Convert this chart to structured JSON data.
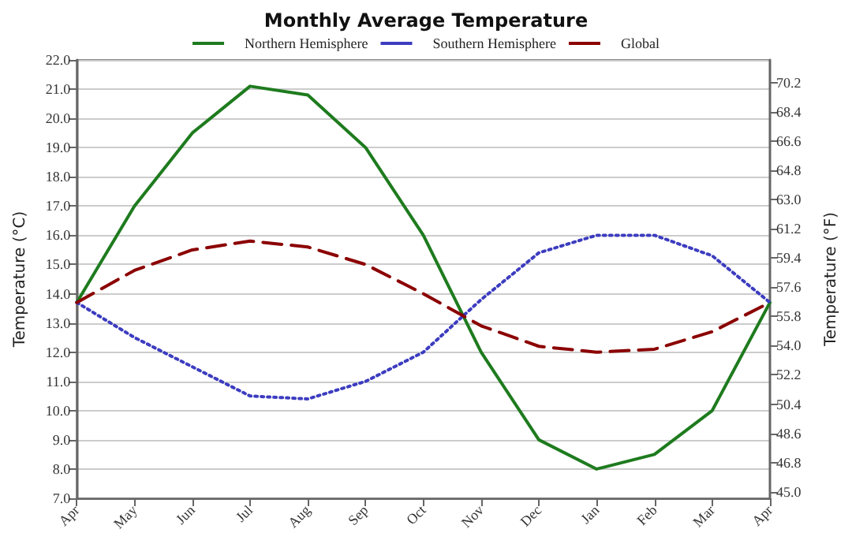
{
  "chart_data": {
    "type": "line",
    "title": "Monthly Average Temperature",
    "categories": [
      "Apr",
      "May",
      "Jun",
      "Jul",
      "Aug",
      "Sep",
      "Oct",
      "Nov",
      "Dec",
      "Jan",
      "Feb",
      "Mar",
      "Apr"
    ],
    "series": [
      {
        "name": "Northern Hemisphere",
        "color": "#1e7b1e",
        "line_style": "solid",
        "values": [
          13.7,
          17.0,
          19.5,
          21.1,
          20.8,
          19.0,
          16.0,
          12.0,
          9.0,
          8.0,
          8.5,
          10.0,
          13.7
        ]
      },
      {
        "name": "Southern Hemisphere",
        "color": "#3c3cc0",
        "line_style": "dotted",
        "values": [
          13.7,
          12.5,
          11.5,
          10.5,
          10.4,
          11.0,
          12.0,
          13.8,
          15.4,
          16.0,
          16.0,
          15.3,
          13.7
        ]
      },
      {
        "name": "Global",
        "color": "#8b0000",
        "line_style": "dashed",
        "values": [
          13.7,
          14.8,
          15.5,
          15.8,
          15.6,
          15.0,
          14.0,
          12.9,
          12.2,
          12.0,
          12.1,
          12.7,
          13.7
        ]
      }
    ],
    "ylabel": "Temperature (°C)",
    "y2label": "Temperature (°F)",
    "ylim": [
      7.0,
      22.0
    ],
    "yticks": [
      {
        "value": 7,
        "label": "7.0"
      },
      {
        "value": 8,
        "label": "8.0"
      },
      {
        "value": 9,
        "label": "9.0"
      },
      {
        "value": 10,
        "label": "10.0"
      },
      {
        "value": 11,
        "label": "11.0"
      },
      {
        "value": 12,
        "label": "12.0"
      },
      {
        "value": 13,
        "label": "13.0"
      },
      {
        "value": 14,
        "label": "14.0"
      },
      {
        "value": 15,
        "label": "15.0"
      },
      {
        "value": 16,
        "label": "16.0"
      },
      {
        "value": 17,
        "label": "17.0"
      },
      {
        "value": 18,
        "label": "18.0"
      },
      {
        "value": 19,
        "label": "19.0"
      },
      {
        "value": 20,
        "label": "20.0"
      },
      {
        "value": 21,
        "label": "21.0"
      },
      {
        "value": 22,
        "label": "22.0"
      }
    ],
    "y2lim": [
      44.6,
      71.6
    ],
    "y2ticks": [
      {
        "value": 45,
        "label": "45.0"
      },
      46.8,
      48.6,
      50.4,
      52.2,
      {
        "value": 54,
        "label": "54.0"
      },
      55.8,
      57.6,
      59.4,
      61.2,
      {
        "value": 63,
        "label": "63.0"
      },
      64.8,
      66.6,
      68.4,
      70.2
    ],
    "grid": "y",
    "legend": "top",
    "marker": "none"
  }
}
